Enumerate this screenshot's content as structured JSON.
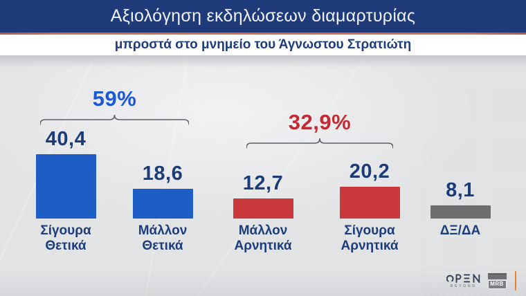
{
  "header": {
    "title": "Αξιολόγηση εκδηλώσεων διαμαρτυρίας",
    "subtitle": "μπροστά στο μνημείο του Άγνωστου Στρατιώτη",
    "bar_color": "#1e3a78",
    "accent_line_color": "#d96b4a"
  },
  "chart_data": {
    "type": "bar",
    "title": "Αξιολόγηση εκδηλώσεων διαμαρτυρίας",
    "subtitle": "μπροστά στο μνημείο του Άγνωστου Στρατιώτη",
    "categories": [
      "Σίγουρα Θετικά",
      "Μάλλον Θετικά",
      "Μάλλον Αρνητικά",
      "Σίγουρα Αρνητικά",
      "ΔΞ/ΔΑ"
    ],
    "values": [
      40.4,
      18.6,
      12.7,
      20.2,
      8.1
    ],
    "value_labels": [
      "40,4",
      "18,6",
      "12,7",
      "20,2",
      "8,1"
    ],
    "bar_colors": [
      "#1d5dc5",
      "#1d5dc5",
      "#c9383a",
      "#c9383a",
      "#6c6e70"
    ],
    "value_label_color": "#1b3c78",
    "category_label_color": "#1c3d7a",
    "bracket_color": "#5b6066",
    "ylim": [
      0,
      45
    ],
    "grid": false,
    "legend": false,
    "groups": [
      {
        "label": "59%",
        "color": "#1c59d4",
        "bars": [
          0,
          1
        ]
      },
      {
        "label": "32,9%",
        "color": "#c22a34",
        "bars": [
          2,
          3
        ]
      }
    ]
  },
  "branding": {
    "open_name": "OPEN",
    "open_tagline": "BEYOND",
    "mrb_label": "MRB",
    "open_color": "#323f57",
    "divider_color": "#e5812f"
  }
}
